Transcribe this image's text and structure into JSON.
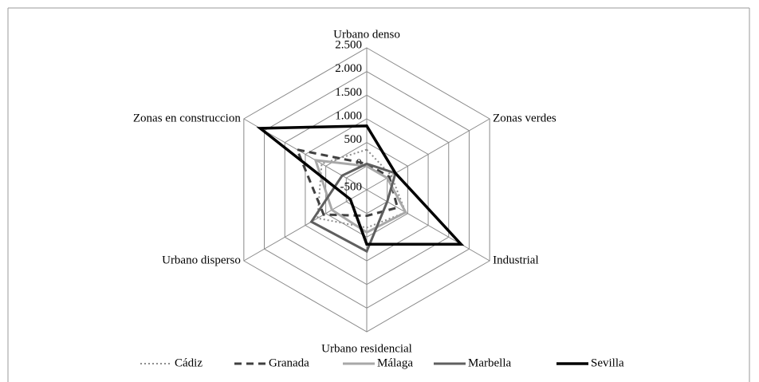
{
  "chart_data": {
    "type": "radar",
    "categories": [
      "Urbano denso",
      "Zonas verdes",
      "Industrial",
      "Urbano residencial",
      "Urbano disperso",
      "Zonas en construccion"
    ],
    "ylim": [
      -500,
      2500
    ],
    "yticks": [
      -500,
      0,
      500,
      {
        "value": 1000,
        "label": "1.000"
      },
      {
        "value": 1500,
        "label": "1.500"
      },
      {
        "value": 2000,
        "label": "2.000"
      },
      {
        "value": 2500,
        "label": "2.500"
      }
    ],
    "grid": true,
    "legend": "bottom",
    "series": [
      {
        "name": "Cádiz",
        "color": "#8c8c8c",
        "dash": "dot",
        "values": [
          350,
          100,
          450,
          300,
          700,
          600
        ]
      },
      {
        "name": "Granada",
        "color": "#404040",
        "dash": "dash",
        "values": [
          50,
          50,
          250,
          50,
          550,
          1200
        ]
      },
      {
        "name": "Málaga",
        "color": "#a8a8a8",
        "dash": "solid",
        "values": [
          0,
          0,
          450,
          400,
          350,
          750
        ]
      },
      {
        "name": "Marbella",
        "color": "#5f5f5f",
        "dash": "solid",
        "values": [
          50,
          200,
          0,
          800,
          850,
          100
        ]
      },
      {
        "name": "Sevilla",
        "color": "#000000",
        "dash": "solid",
        "values": [
          850,
          200,
          1800,
          650,
          -100,
          2100
        ]
      }
    ]
  }
}
